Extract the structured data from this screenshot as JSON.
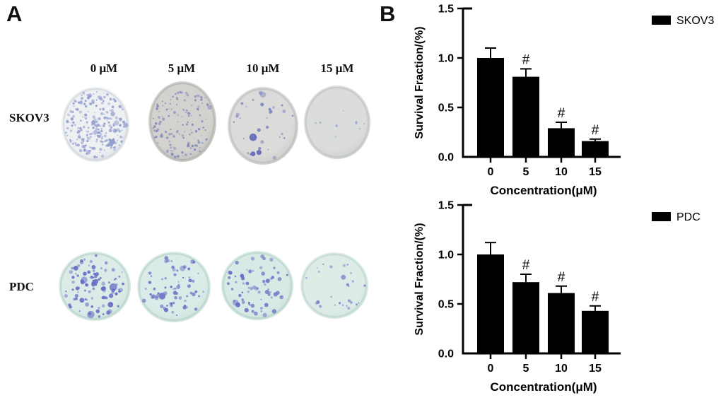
{
  "panel_a": {
    "label": "A",
    "column_headers": [
      "0 μM",
      "5 μM",
      "10 μM",
      "15 μM"
    ],
    "rows": [
      {
        "label": "SKOV3",
        "dishes": [
          {
            "concentration": "0 μM",
            "bg": "#eef0f2",
            "edge": "#dde1e6",
            "rim": "#cdd2d9",
            "dot_color": "#8e9bcd",
            "dot_count": 240,
            "dot_rmin": 0.7,
            "dot_rmax": 2.3,
            "seed": 11,
            "cluster": 0,
            "blobs": 0
          },
          {
            "concentration": "5 μM",
            "bg": "#d3d2ce",
            "edge": "#bfbeba",
            "rim": "#b0afab",
            "dot_color": "#7c86bb",
            "dot_count": 135,
            "dot_rmin": 0.7,
            "dot_rmax": 2.0,
            "seed": 22,
            "cluster": 0,
            "blobs": 0
          },
          {
            "concentration": "10 μM",
            "bg": "#dbdbd9",
            "edge": "#c9c9c7",
            "rim": "#bababa",
            "dot_color": "#7d86c0",
            "dot_count": 30,
            "dot_rmin": 0.9,
            "dot_rmax": 2.6,
            "seed": 33,
            "cluster": 0,
            "blobs": 3
          },
          {
            "concentration": "15 μM",
            "bg": "#dbdddc",
            "edge": "#cccfce",
            "rim": "#bfc2c1",
            "dot_color": "#9aa4cc",
            "dot_count": 9,
            "dot_rmin": 0.8,
            "dot_rmax": 1.8,
            "seed": 44,
            "cluster": 0,
            "blobs": 0
          }
        ]
      },
      {
        "label": "PDC",
        "dishes": [
          {
            "concentration": "0 μM",
            "bg": "#dcebe7",
            "edge": "#cde2dc",
            "rim": "#b2d0c8",
            "dot_color": "#676ec5",
            "dot_count": 85,
            "dot_rmin": 1.0,
            "dot_rmax": 3.2,
            "seed": 55,
            "cluster": 14,
            "blobs": 0
          },
          {
            "concentration": "5 μM",
            "bg": "#dbebe7",
            "edge": "#cde2dc",
            "rim": "#b2d0c8",
            "dot_color": "#676ec5",
            "dot_count": 70,
            "dot_rmin": 1.0,
            "dot_rmax": 3.0,
            "seed": 66,
            "cluster": 0,
            "blobs": 0
          },
          {
            "concentration": "10 μM",
            "bg": "#d9eae6",
            "edge": "#cbe0da",
            "rim": "#b2d0c8",
            "dot_color": "#676ec5",
            "dot_count": 64,
            "dot_rmin": 1.0,
            "dot_rmax": 3.2,
            "seed": 77,
            "cluster": 0,
            "blobs": 0
          },
          {
            "concentration": "15 μM",
            "bg": "#deece8",
            "edge": "#d0e3dd",
            "rim": "#b8d4cc",
            "dot_color": "#7a80cc",
            "dot_count": 26,
            "dot_rmin": 0.8,
            "dot_rmax": 2.2,
            "seed": 88,
            "cluster": 0,
            "blobs": 0
          }
        ]
      }
    ]
  },
  "panel_b": {
    "label": "B"
  },
  "chart_data": [
    {
      "type": "bar",
      "legend": "SKOV3",
      "xlabel": "Concentration(μM)",
      "ylabel": "Survival Fraction/(%)",
      "categories": [
        "0",
        "5",
        "10",
        "15"
      ],
      "values": [
        1.0,
        0.81,
        0.29,
        0.16
      ],
      "errors": [
        0.1,
        0.08,
        0.06,
        0.02
      ],
      "annotations": [
        "",
        "#",
        "#",
        "#"
      ],
      "yticks": [
        0.0,
        0.5,
        1.0,
        1.5
      ],
      "ylim": [
        0,
        1.5
      ],
      "bar_color": "#000000",
      "grid": false,
      "legend_position": "outside-top-right"
    },
    {
      "type": "bar",
      "legend": "PDC",
      "xlabel": "Concentration(μM)",
      "ylabel": "Survival Fraction/(%)",
      "categories": [
        "0",
        "5",
        "10",
        "15"
      ],
      "values": [
        1.0,
        0.72,
        0.61,
        0.43
      ],
      "errors": [
        0.12,
        0.08,
        0.07,
        0.05
      ],
      "annotations": [
        "",
        "#",
        "#",
        "#"
      ],
      "yticks": [
        0.0,
        0.5,
        1.0,
        1.5
      ],
      "ylim": [
        0,
        1.5
      ],
      "bar_color": "#000000",
      "grid": false,
      "legend_position": "outside-top-right"
    }
  ]
}
